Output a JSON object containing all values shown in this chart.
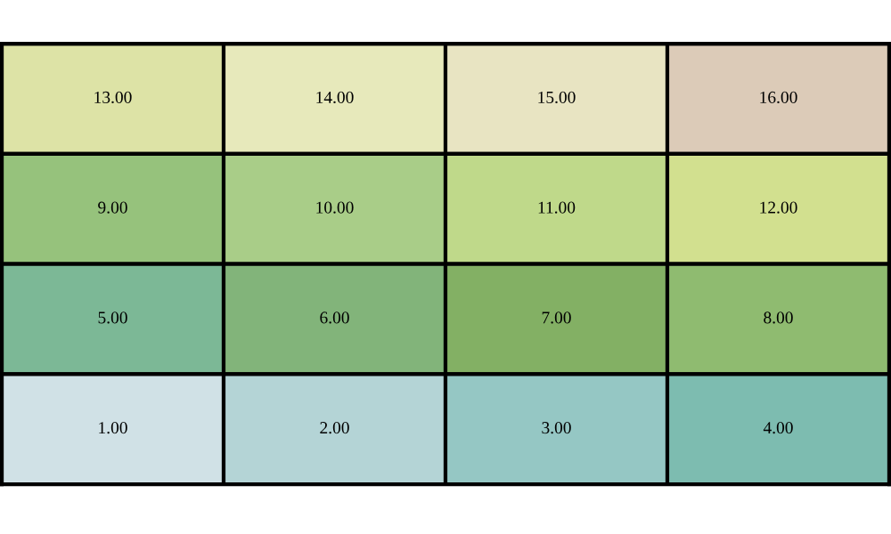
{
  "chart_data": {
    "type": "heatmap",
    "categories": [
      null,
      null,
      null,
      null
    ],
    "y_categories": [
      null,
      null,
      null,
      null
    ],
    "cells": [
      [
        13,
        14,
        15,
        16
      ],
      [
        9,
        10,
        11,
        12
      ],
      [
        5,
        6,
        7,
        8
      ],
      [
        1,
        2,
        3,
        4
      ]
    ],
    "cell_labels": [
      [
        "13.00",
        "14.00",
        "15.00",
        "16.00"
      ],
      [
        "9.00",
        "10.00",
        "11.00",
        "12.00"
      ],
      [
        "5.00",
        "6.00",
        "7.00",
        "8.00"
      ],
      [
        "1.00",
        "2.00",
        "3.00",
        "4.00"
      ]
    ],
    "colors": [
      [
        "#dde3a6",
        "#e7e9bb",
        "#e8e4c2",
        "#dccbb8"
      ],
      [
        "#96c27c",
        "#a9cd88",
        "#bfd98a",
        "#d2e08f"
      ],
      [
        "#7cb896",
        "#82b47a",
        "#83b064",
        "#8fbb70"
      ],
      [
        "#d0e1e6",
        "#b4d4d6",
        "#95c7c4",
        "#7dbcb0"
      ]
    ],
    "tick_labels": false
  }
}
